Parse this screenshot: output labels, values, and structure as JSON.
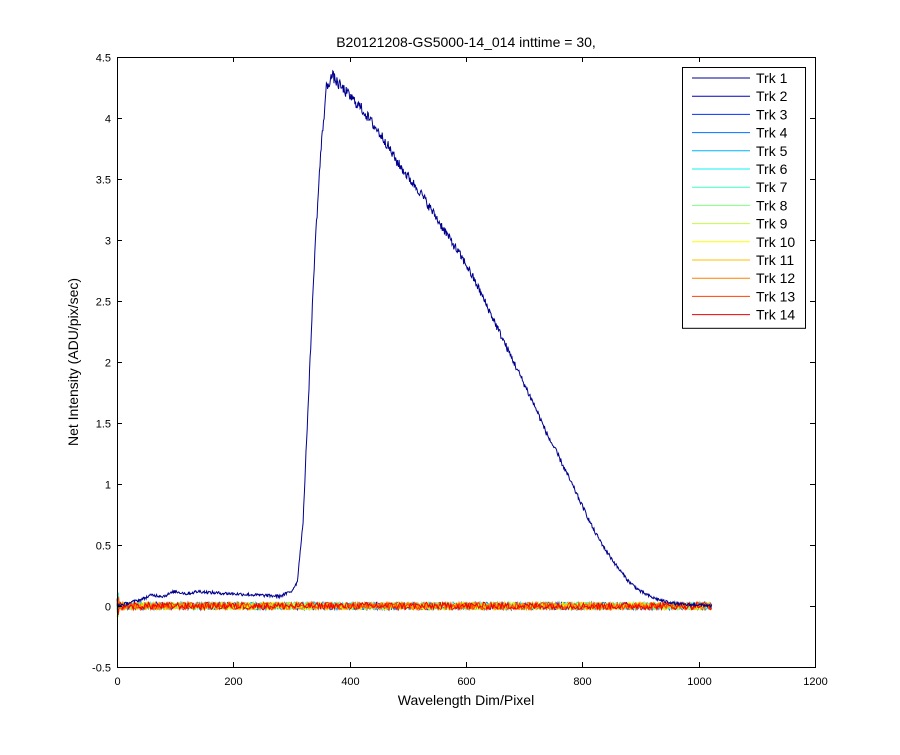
{
  "chart_data": {
    "type": "line",
    "title": "B20121208-GS5000-14_014 inttime = 30,",
    "xlabel": "Wavelength Dim/Pixel",
    "ylabel": "Net Intensity (ADU/pix/sec)",
    "xlim": [
      0,
      1200
    ],
    "ylim": [
      -0.5,
      4.5
    ],
    "xticks": [
      0,
      200,
      400,
      600,
      800,
      1000,
      1200
    ],
    "yticks": [
      -0.5,
      0,
      0.5,
      1,
      1.5,
      2,
      2.5,
      3,
      3.5,
      4,
      4.5
    ],
    "xtick_labels": [
      "0",
      "200",
      "400",
      "600",
      "800",
      "1000",
      "1200"
    ],
    "ytick_labels": [
      "-0.5",
      "0",
      "0.5",
      "1",
      "1.5",
      "2",
      "2.5",
      "3",
      "3.5",
      "4",
      "4.5"
    ],
    "grid": false,
    "legend_position": "top-right",
    "series": [
      {
        "name": "Trk 1",
        "color": "#00008F",
        "x": [
          0,
          40,
          60,
          80,
          100,
          120,
          140,
          160,
          200,
          240,
          280,
          300,
          310,
          320,
          330,
          340,
          350,
          360,
          365,
          370,
          380,
          400,
          420,
          440,
          460,
          480,
          500,
          520,
          540,
          560,
          580,
          600,
          620,
          640,
          660,
          680,
          700,
          720,
          740,
          760,
          780,
          800,
          820,
          840,
          860,
          880,
          900,
          920,
          940,
          960,
          980,
          1000,
          1020,
          1023
        ],
        "y": [
          0.0,
          0.05,
          0.09,
          0.08,
          0.12,
          0.1,
          0.12,
          0.11,
          0.1,
          0.09,
          0.08,
          0.12,
          0.2,
          0.7,
          1.8,
          2.9,
          3.7,
          4.25,
          4.3,
          4.35,
          4.28,
          4.18,
          4.08,
          3.95,
          3.82,
          3.65,
          3.52,
          3.4,
          3.25,
          3.1,
          2.95,
          2.8,
          2.62,
          2.42,
          2.22,
          2.02,
          1.82,
          1.62,
          1.4,
          1.22,
          1.02,
          0.82,
          0.62,
          0.46,
          0.32,
          0.2,
          0.12,
          0.07,
          0.04,
          0.02,
          0.01,
          0.01,
          0.0,
          0.0
        ]
      },
      {
        "name": "Trk 2",
        "color": "#0000BF",
        "baseline": true
      },
      {
        "name": "Trk 3",
        "color": "#0030FF",
        "baseline": true
      },
      {
        "name": "Trk 4",
        "color": "#0070FF",
        "baseline": true
      },
      {
        "name": "Trk 5",
        "color": "#00B0FF",
        "baseline": true
      },
      {
        "name": "Trk 6",
        "color": "#10EFEF",
        "baseline": true
      },
      {
        "name": "Trk 7",
        "color": "#40FFBF",
        "baseline": true
      },
      {
        "name": "Trk 8",
        "color": "#80FF80",
        "baseline": true
      },
      {
        "name": "Trk 9",
        "color": "#BFFF40",
        "baseline": true
      },
      {
        "name": "Trk 10",
        "color": "#FFFF00",
        "baseline": true
      },
      {
        "name": "Trk 11",
        "color": "#FFBF00",
        "baseline": true
      },
      {
        "name": "Trk 12",
        "color": "#FF8000",
        "baseline": true
      },
      {
        "name": "Trk 13",
        "color": "#FF4000",
        "baseline": true
      },
      {
        "name": "Trk 14",
        "color": "#EF0000",
        "baseline": true
      }
    ]
  }
}
